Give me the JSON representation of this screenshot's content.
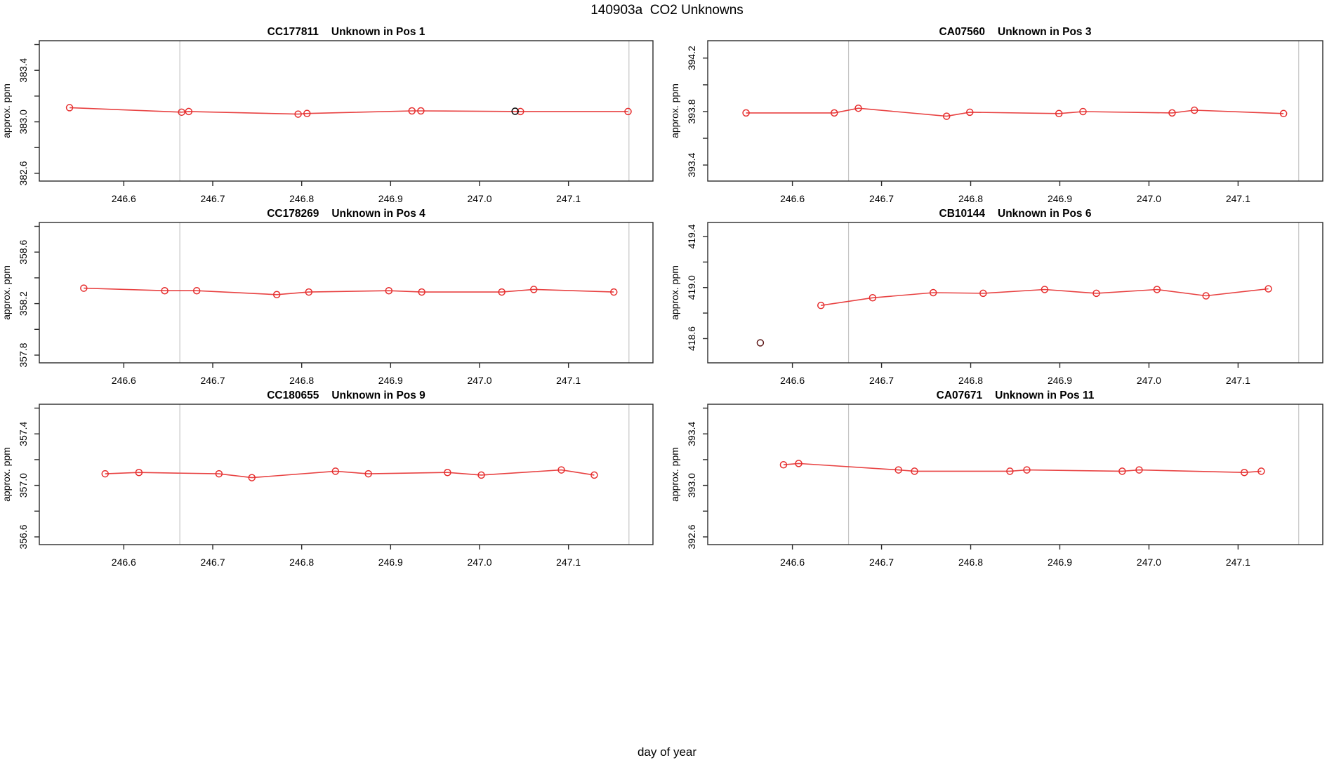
{
  "figure": {
    "title": "140903a  CO2 Unknowns",
    "xlabel": "day of year",
    "colors": {
      "series": "#e62e2e",
      "flagged_black": "#000000",
      "flagged_maroon": "#5c1717",
      "refline": "#c6c6c6",
      "axis": "#2b2b2b",
      "text": "#000000",
      "background": "#ffffff"
    },
    "x_axis": {
      "lim": [
        246.505,
        247.195
      ],
      "ticks": [
        246.6,
        246.7,
        246.8,
        246.9,
        247.0,
        247.1
      ],
      "reflines": [
        246.663,
        247.168
      ]
    }
  },
  "chart_data": [
    {
      "type": "line",
      "sample": "CC177811",
      "label": "Unknown in Pos 1",
      "ylabel": "approx. ppm",
      "ylim": [
        382.54,
        383.63
      ],
      "yticks": [
        382.6,
        382.8,
        383.0,
        383.2,
        383.4,
        383.6
      ],
      "ytick_labels": [
        382.6,
        383.0,
        383.4
      ],
      "points": [
        [
          246.539,
          383.11
        ],
        [
          246.665,
          383.075
        ],
        [
          246.673,
          383.08
        ],
        [
          246.796,
          383.06
        ],
        [
          246.806,
          383.065
        ],
        [
          246.924,
          383.085
        ],
        [
          246.934,
          383.085
        ],
        [
          247.046,
          383.08
        ],
        [
          247.167,
          383.08
        ]
      ],
      "flagged": [
        [
          247.04,
          383.082
        ]
      ],
      "flagged_color": "#000000"
    },
    {
      "type": "line",
      "sample": "CA07560",
      "label": "Unknown in Pos 3",
      "ylabel": "approx. ppm",
      "ylim": [
        393.28,
        394.33
      ],
      "yticks": [
        393.4,
        393.6,
        393.8,
        394.0,
        394.2
      ],
      "ytick_labels": [
        393.4,
        393.8,
        394.2
      ],
      "points": [
        [
          246.548,
          393.79
        ],
        [
          246.647,
          393.79
        ],
        [
          246.674,
          393.825
        ],
        [
          246.773,
          393.765
        ],
        [
          246.799,
          393.795
        ],
        [
          246.899,
          393.785
        ],
        [
          246.926,
          393.8
        ],
        [
          247.026,
          393.79
        ],
        [
          247.051,
          393.81
        ],
        [
          247.151,
          393.785
        ]
      ],
      "flagged": [],
      "flagged_color": "#000000"
    },
    {
      "type": "line",
      "sample": "CC178269",
      "label": "Unknown in Pos 4",
      "ylabel": "approx. ppm",
      "ylim": [
        357.74,
        358.83
      ],
      "yticks": [
        357.8,
        358.0,
        358.2,
        358.4,
        358.6,
        358.8
      ],
      "ytick_labels": [
        357.8,
        358.2,
        358.6
      ],
      "points": [
        [
          246.555,
          358.32
        ],
        [
          246.646,
          358.3
        ],
        [
          246.682,
          358.3
        ],
        [
          246.772,
          358.27
        ],
        [
          246.808,
          358.29
        ],
        [
          246.898,
          358.3
        ],
        [
          246.935,
          358.29
        ],
        [
          247.025,
          358.29
        ],
        [
          247.061,
          358.31
        ],
        [
          247.151,
          358.29
        ]
      ],
      "flagged": [],
      "flagged_color": "#000000"
    },
    {
      "type": "line",
      "sample": "CB10144",
      "label": "Unknown in Pos 6",
      "ylabel": "approx. ppm",
      "ylim": [
        418.41,
        419.51
      ],
      "yticks": [
        418.6,
        418.8,
        419.0,
        419.2,
        419.4
      ],
      "ytick_labels": [
        418.6,
        419.0,
        419.4
      ],
      "points": [
        [
          246.632,
          418.86
        ],
        [
          246.69,
          418.92
        ],
        [
          246.758,
          418.96
        ],
        [
          246.814,
          418.955
        ],
        [
          246.883,
          418.985
        ],
        [
          246.941,
          418.955
        ],
        [
          247.009,
          418.985
        ],
        [
          247.064,
          418.935
        ],
        [
          247.134,
          418.99
        ]
      ],
      "flagged": [
        [
          246.564,
          418.567
        ]
      ],
      "flagged_color": "#5c1717"
    },
    {
      "type": "line",
      "sample": "CC180655",
      "label": "Unknown in Pos 9",
      "ylabel": "approx. ppm",
      "ylim": [
        356.54,
        357.63
      ],
      "yticks": [
        356.6,
        356.8,
        357.0,
        357.2,
        357.4,
        357.6
      ],
      "ytick_labels": [
        356.6,
        357.0,
        357.4
      ],
      "points": [
        [
          246.579,
          357.09
        ],
        [
          246.617,
          357.1
        ],
        [
          246.707,
          357.09
        ],
        [
          246.744,
          357.06
        ],
        [
          246.838,
          357.11
        ],
        [
          246.875,
          357.09
        ],
        [
          246.964,
          357.1
        ],
        [
          247.002,
          357.08
        ],
        [
          247.092,
          357.12
        ],
        [
          247.129,
          357.08
        ]
      ],
      "flagged": [],
      "flagged_color": "#000000"
    },
    {
      "type": "line",
      "sample": "CA07671",
      "label": "Unknown in Pos 11",
      "ylabel": "approx. ppm",
      "ylim": [
        392.54,
        393.63
      ],
      "yticks": [
        392.6,
        392.8,
        393.0,
        393.2,
        393.4,
        393.6
      ],
      "ytick_labels": [
        392.6,
        393.0,
        393.4
      ],
      "points": [
        [
          246.59,
          393.16
        ],
        [
          246.607,
          393.17
        ],
        [
          246.719,
          393.12
        ],
        [
          246.737,
          393.11
        ],
        [
          246.844,
          393.11
        ],
        [
          246.863,
          393.12
        ],
        [
          246.97,
          393.11
        ],
        [
          246.989,
          393.12
        ],
        [
          247.107,
          393.1
        ],
        [
          247.126,
          393.11
        ]
      ],
      "flagged": [],
      "flagged_color": "#000000"
    }
  ]
}
